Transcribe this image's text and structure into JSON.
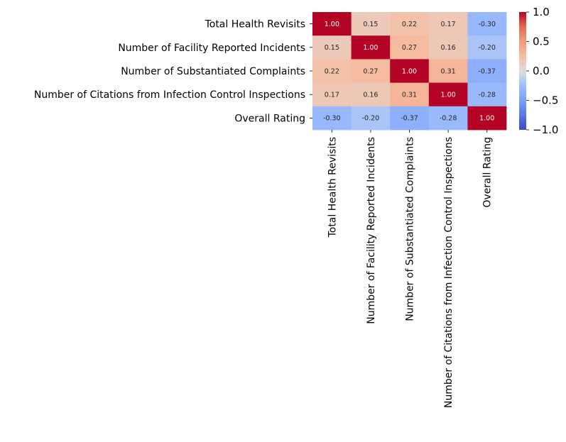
{
  "chart_data": {
    "type": "heatmap",
    "title": "",
    "xlabel": "",
    "ylabel": "",
    "row_labels": [
      "Total Health Revisits",
      "Number of Facility Reported Incidents",
      "Number of Substantiated Complaints",
      "Number of Citations from Infection Control Inspections",
      "Overall Rating"
    ],
    "col_labels": [
      "Total Health Revisits",
      "Number of Facility Reported Incidents",
      "Number of Substantiated Complaints",
      "Number of Citations from Infection Control Inspections",
      "Overall Rating"
    ],
    "values": [
      [
        1.0,
        0.15,
        0.22,
        0.17,
        -0.3
      ],
      [
        0.15,
        1.0,
        0.27,
        0.16,
        -0.2
      ],
      [
        0.22,
        0.27,
        1.0,
        0.31,
        -0.37
      ],
      [
        0.17,
        0.16,
        0.31,
        1.0,
        -0.28
      ],
      [
        -0.3,
        -0.2,
        -0.37,
        -0.28,
        1.0
      ]
    ],
    "cell_labels": [
      [
        "1.00",
        "0.15",
        "0.22",
        "0.17",
        "-0.30"
      ],
      [
        "0.15",
        "1.00",
        "0.27",
        "0.16",
        "-0.20"
      ],
      [
        "0.22",
        "0.27",
        "1.00",
        "0.31",
        "-0.37"
      ],
      [
        "0.17",
        "0.16",
        "0.31",
        "1.00",
        "-0.28"
      ],
      [
        "-0.30",
        "-0.20",
        "-0.37",
        "-0.28",
        "1.00"
      ]
    ],
    "colormap": "coolwarm",
    "vmin": -1.0,
    "vmax": 1.0,
    "colorbar": {
      "ticks": [
        1.0,
        0.5,
        0.0,
        -0.5,
        -1.0
      ],
      "tick_labels": [
        "1.0",
        "0.5",
        "0.0",
        "−0.5",
        "−1.0"
      ]
    },
    "grid": false,
    "legend": "colorbar-right"
  }
}
